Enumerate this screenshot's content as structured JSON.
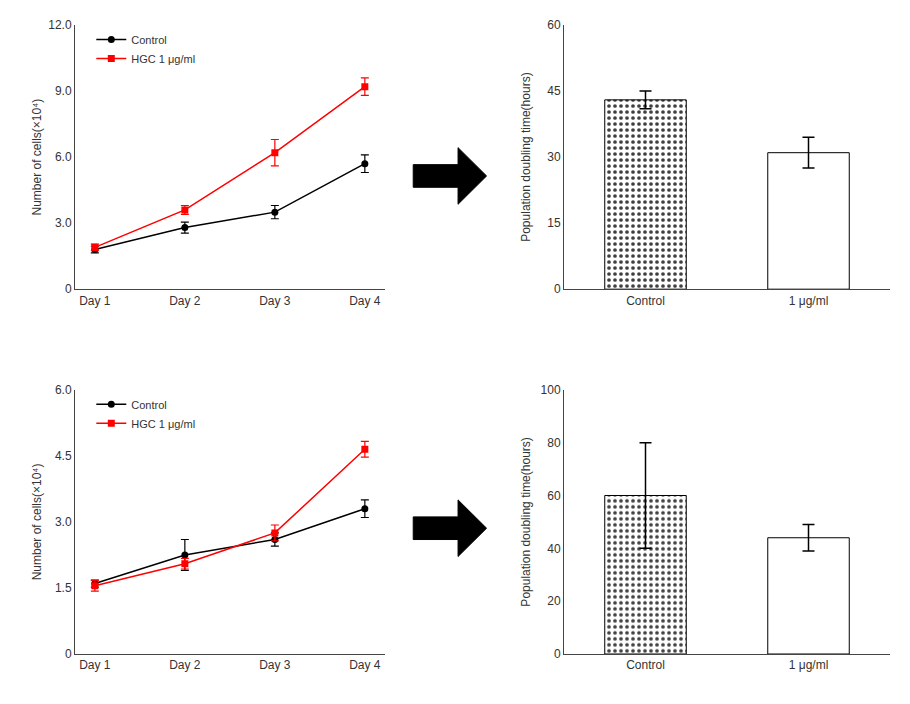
{
  "chart_data": [
    {
      "type": "line",
      "categories": [
        "Day 1",
        "Day 2",
        "Day 3",
        "Day 4"
      ],
      "series": [
        {
          "name": "Control",
          "color": "black",
          "marker": "circle",
          "line_style": "solid",
          "values": [
            1.8,
            2.8,
            3.5,
            5.7
          ],
          "errors": [
            0.15,
            0.25,
            0.3,
            0.4
          ]
        },
        {
          "name": "HGC 1 μg/ml",
          "color": "red",
          "marker": "square",
          "line_style": "solid",
          "values": [
            1.9,
            3.6,
            6.2,
            9.2
          ],
          "errors": [
            0.15,
            0.2,
            0.6,
            0.4
          ]
        }
      ],
      "y_label": "Number of cells(×10⁴)",
      "ylim": [
        0,
        12.0
      ],
      "yticks": [
        0,
        {
          "value": 3.0,
          "label": "3.0"
        },
        {
          "value": 6.0,
          "label": "6.0"
        },
        {
          "value": 9.0,
          "label": "9.0"
        },
        {
          "value": 12.0,
          "label": "12.0"
        }
      ],
      "grid": false,
      "legend": "upper left"
    },
    {
      "type": "bar",
      "categories": [
        "Control",
        "1 μg/ml"
      ],
      "values": [
        43.0,
        31.0
      ],
      "errors": [
        2.0,
        3.5
      ],
      "colors": [
        "#404040",
        "#ffffff"
      ],
      "y_label": "Population doubling time(hours)",
      "ylim": [
        0,
        60
      ],
      "yticks": [
        0,
        15,
        30,
        45,
        60
      ],
      "grid": false
    },
    {
      "type": "line",
      "categories": [
        "Day 1",
        "Day 2",
        "Day 3",
        "Day 4"
      ],
      "series": [
        {
          "name": "Control",
          "color": "black",
          "marker": "circle",
          "line_style": "solid",
          "values": [
            1.6,
            2.25,
            2.6,
            3.3
          ],
          "errors": [
            0.08,
            0.35,
            0.15,
            0.2
          ]
        },
        {
          "name": "HGC 1 μg/ml",
          "color": "red",
          "marker": "square",
          "line_style": "solid",
          "values": [
            1.55,
            2.05,
            2.75,
            4.65
          ],
          "errors": [
            0.12,
            0.12,
            0.18,
            0.18
          ]
        }
      ],
      "y_label": "Number of cells(×10⁴)",
      "ylim": [
        0,
        6.0
      ],
      "yticks": [
        0,
        1.5,
        {
          "value": 3.0,
          "label": "3.0"
        },
        4.5,
        {
          "value": 6.0,
          "label": "6.0"
        }
      ],
      "grid": false,
      "legend": "upper left"
    },
    {
      "type": "bar",
      "categories": [
        "Control",
        "1 μg/ml"
      ],
      "values": [
        60.0,
        44.0
      ],
      "errors": [
        20.0,
        5.0
      ],
      "colors": [
        "#404040",
        "#ffffff"
      ],
      "y_label": "Population doubling time(hours)",
      "ylim": [
        0,
        100
      ],
      "yticks": [
        0,
        20,
        40,
        60,
        80,
        100
      ],
      "grid": false
    }
  ]
}
